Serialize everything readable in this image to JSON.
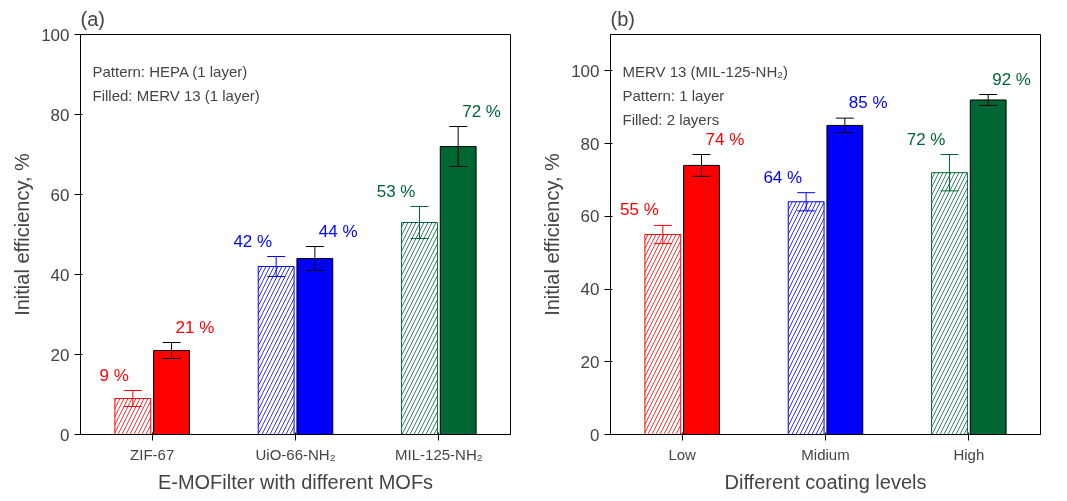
{
  "chart_data": [
    {
      "type": "bar",
      "title": "(a)",
      "xlabel": "E-MOFilter with different MOFs",
      "ylabel": "Initial efficiency, %",
      "categories": [
        "ZIF-67",
        "UiO-66-NH₂",
        "MIL-125-NH₂"
      ],
      "series": [
        {
          "type": "bar",
          "colors": [
            "#ff0000",
            "#0000ff",
            "#006633"
          ],
          "values": [
            9,
            42,
            53
          ],
          "errors": [
            2,
            2.5,
            4
          ],
          "value_labels": [
            "9 %",
            "42 %",
            "53 %"
          ]
        },
        {
          "type": "bar",
          "colors": [
            "#ff0000",
            "#0000ff",
            "#006633"
          ],
          "values": [
            21,
            44,
            72
          ],
          "errors": [
            2,
            3,
            5
          ],
          "value_labels": [
            "21 %",
            "44 %",
            "72 %"
          ]
        }
      ],
      "annotations": [
        "Pattern: HEPA (1 layer)",
        "Filled: MERV 13 (1 layer)"
      ],
      "ylim": [
        0,
        100
      ],
      "yticks": [
        0,
        20,
        40,
        60,
        80,
        100
      ],
      "grid": false
    },
    {
      "type": "bar",
      "title": "(b)",
      "xlabel": "Different coating levels",
      "ylabel": "Initial efficiency, %",
      "categories": [
        "Low",
        "Midium",
        "High"
      ],
      "series": [
        {
          "type": "bar",
          "colors": [
            "#ff0000",
            "#0000ff",
            "#006633"
          ],
          "values": [
            55,
            64,
            72
          ],
          "errors": [
            2.5,
            2.5,
            5
          ],
          "value_labels": [
            "55 %",
            "64 %",
            "72 %"
          ]
        },
        {
          "type": "bar",
          "colors": [
            "#ff0000",
            "#0000ff",
            "#006633"
          ],
          "values": [
            74,
            85,
            92
          ],
          "errors": [
            3,
            2,
            1.5
          ],
          "value_labels": [
            "74 %",
            "85 %",
            "92 %"
          ]
        }
      ],
      "annotations": [
        "MERV 13 (MIL-125-NH₂)",
        "Pattern: 1 layer",
        "Filled: 2 layers"
      ],
      "ylim": [
        0,
        110
      ],
      "yticks": [
        0,
        20,
        40,
        60,
        80,
        100
      ],
      "grid": false
    }
  ]
}
